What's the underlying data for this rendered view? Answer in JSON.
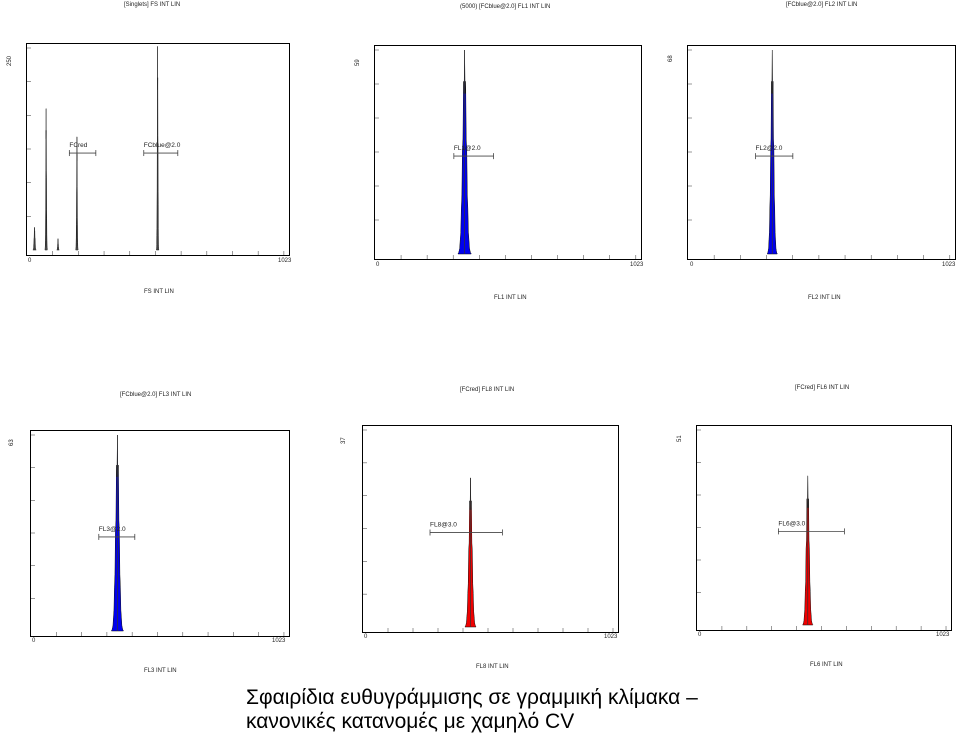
{
  "caption": {
    "line1": "Σφαιρίδια ευθυγράμμισης σε γραμμική κλίμακα –",
    "line2": "κανονικές κατανομές με χαμηλό  CV"
  },
  "chart_data": [
    {
      "type": "area",
      "title": "[Singlets] FS INT LIN",
      "xlabel": "FS INT LIN",
      "xlim": [
        0,
        1023
      ],
      "ylim": [
        0,
        250
      ],
      "x_tick_labels": [
        "0",
        "1023"
      ],
      "y_max_label": "250",
      "fill_color": "#6a6a6a",
      "peaks": [
        {
          "x": 22,
          "height": 28,
          "width": 4
        },
        {
          "x": 68,
          "height": 175,
          "width": 3
        },
        {
          "x": 115,
          "height": 14,
          "width": 3
        },
        {
          "x": 190,
          "height": 140,
          "width": 3
        },
        {
          "x": 510,
          "height": 252,
          "width": 3
        }
      ],
      "gates": [
        {
          "label": "FCred",
          "start": 160,
          "end": 265
        },
        {
          "label": "FCblue@2.0",
          "start": 455,
          "end": 590
        }
      ]
    },
    {
      "type": "area",
      "title": "(5000) [FCblue@2.0] FL1 INT LIN",
      "xlabel": "FL1 INT LIN",
      "xlim": [
        0,
        1023
      ],
      "ylim": [
        0,
        59
      ],
      "x_tick_labels": [
        "0",
        "1023"
      ],
      "y_max_label": "59",
      "fill_color": "#0000ee",
      "peaks": [
        {
          "x": 342,
          "height": 59,
          "width": 16
        }
      ],
      "gates": [
        {
          "label": "FL1@2.0",
          "start": 300,
          "end": 455
        }
      ]
    },
    {
      "type": "area",
      "title": "[FCblue@2.0] FL2 INT LIN",
      "xlabel": "FL2 INT LIN",
      "xlim": [
        0,
        1023
      ],
      "ylim": [
        0,
        68
      ],
      "x_tick_labels": [
        "0",
        "1023"
      ],
      "y_max_label": "68",
      "fill_color": "#0000ee",
      "peaks": [
        {
          "x": 320,
          "height": 68,
          "width": 12
        }
      ],
      "gates": [
        {
          "label": "FL2@2.0",
          "start": 255,
          "end": 400
        }
      ]
    },
    {
      "type": "area",
      "title": "[FCblue@2.0] FL3 INT LIN",
      "xlabel": "FL3 INT LIN",
      "xlim": [
        0,
        1023
      ],
      "ylim": [
        0,
        63
      ],
      "x_tick_labels": [
        "0",
        "1023"
      ],
      "y_max_label": "63",
      "fill_color": "#0000ee",
      "peaks": [
        {
          "x": 340,
          "height": 63,
          "width": 15
        }
      ],
      "gates": [
        {
          "label": "FL3@2.0",
          "start": 265,
          "end": 410
        }
      ]
    },
    {
      "type": "area",
      "title": "[FCred] FL8 INT LIN",
      "xlabel": "FL8 INT LIN",
      "xlim": [
        0,
        1023
      ],
      "ylim": [
        0,
        37
      ],
      "x_tick_labels": [
        "0",
        "1023"
      ],
      "y_max_label": "37",
      "fill_color": "#ee0000",
      "peaks": [
        {
          "x": 430,
          "height": 28,
          "width": 14
        }
      ],
      "gates": [
        {
          "label": "FL8@3.0",
          "start": 265,
          "end": 560
        }
      ]
    },
    {
      "type": "area",
      "title": "[FCred] FL6 INT LIN",
      "xlabel": "FL6 INT LIN",
      "xlim": [
        0,
        1023
      ],
      "ylim": [
        0,
        51
      ],
      "x_tick_labels": [
        "0",
        "1023"
      ],
      "y_max_label": "51",
      "fill_color": "#ee0000",
      "peaks": [
        {
          "x": 445,
          "height": 39,
          "width": 13
        }
      ],
      "gates": [
        {
          "label": "FL6@3.0",
          "start": 325,
          "end": 595
        }
      ]
    }
  ]
}
